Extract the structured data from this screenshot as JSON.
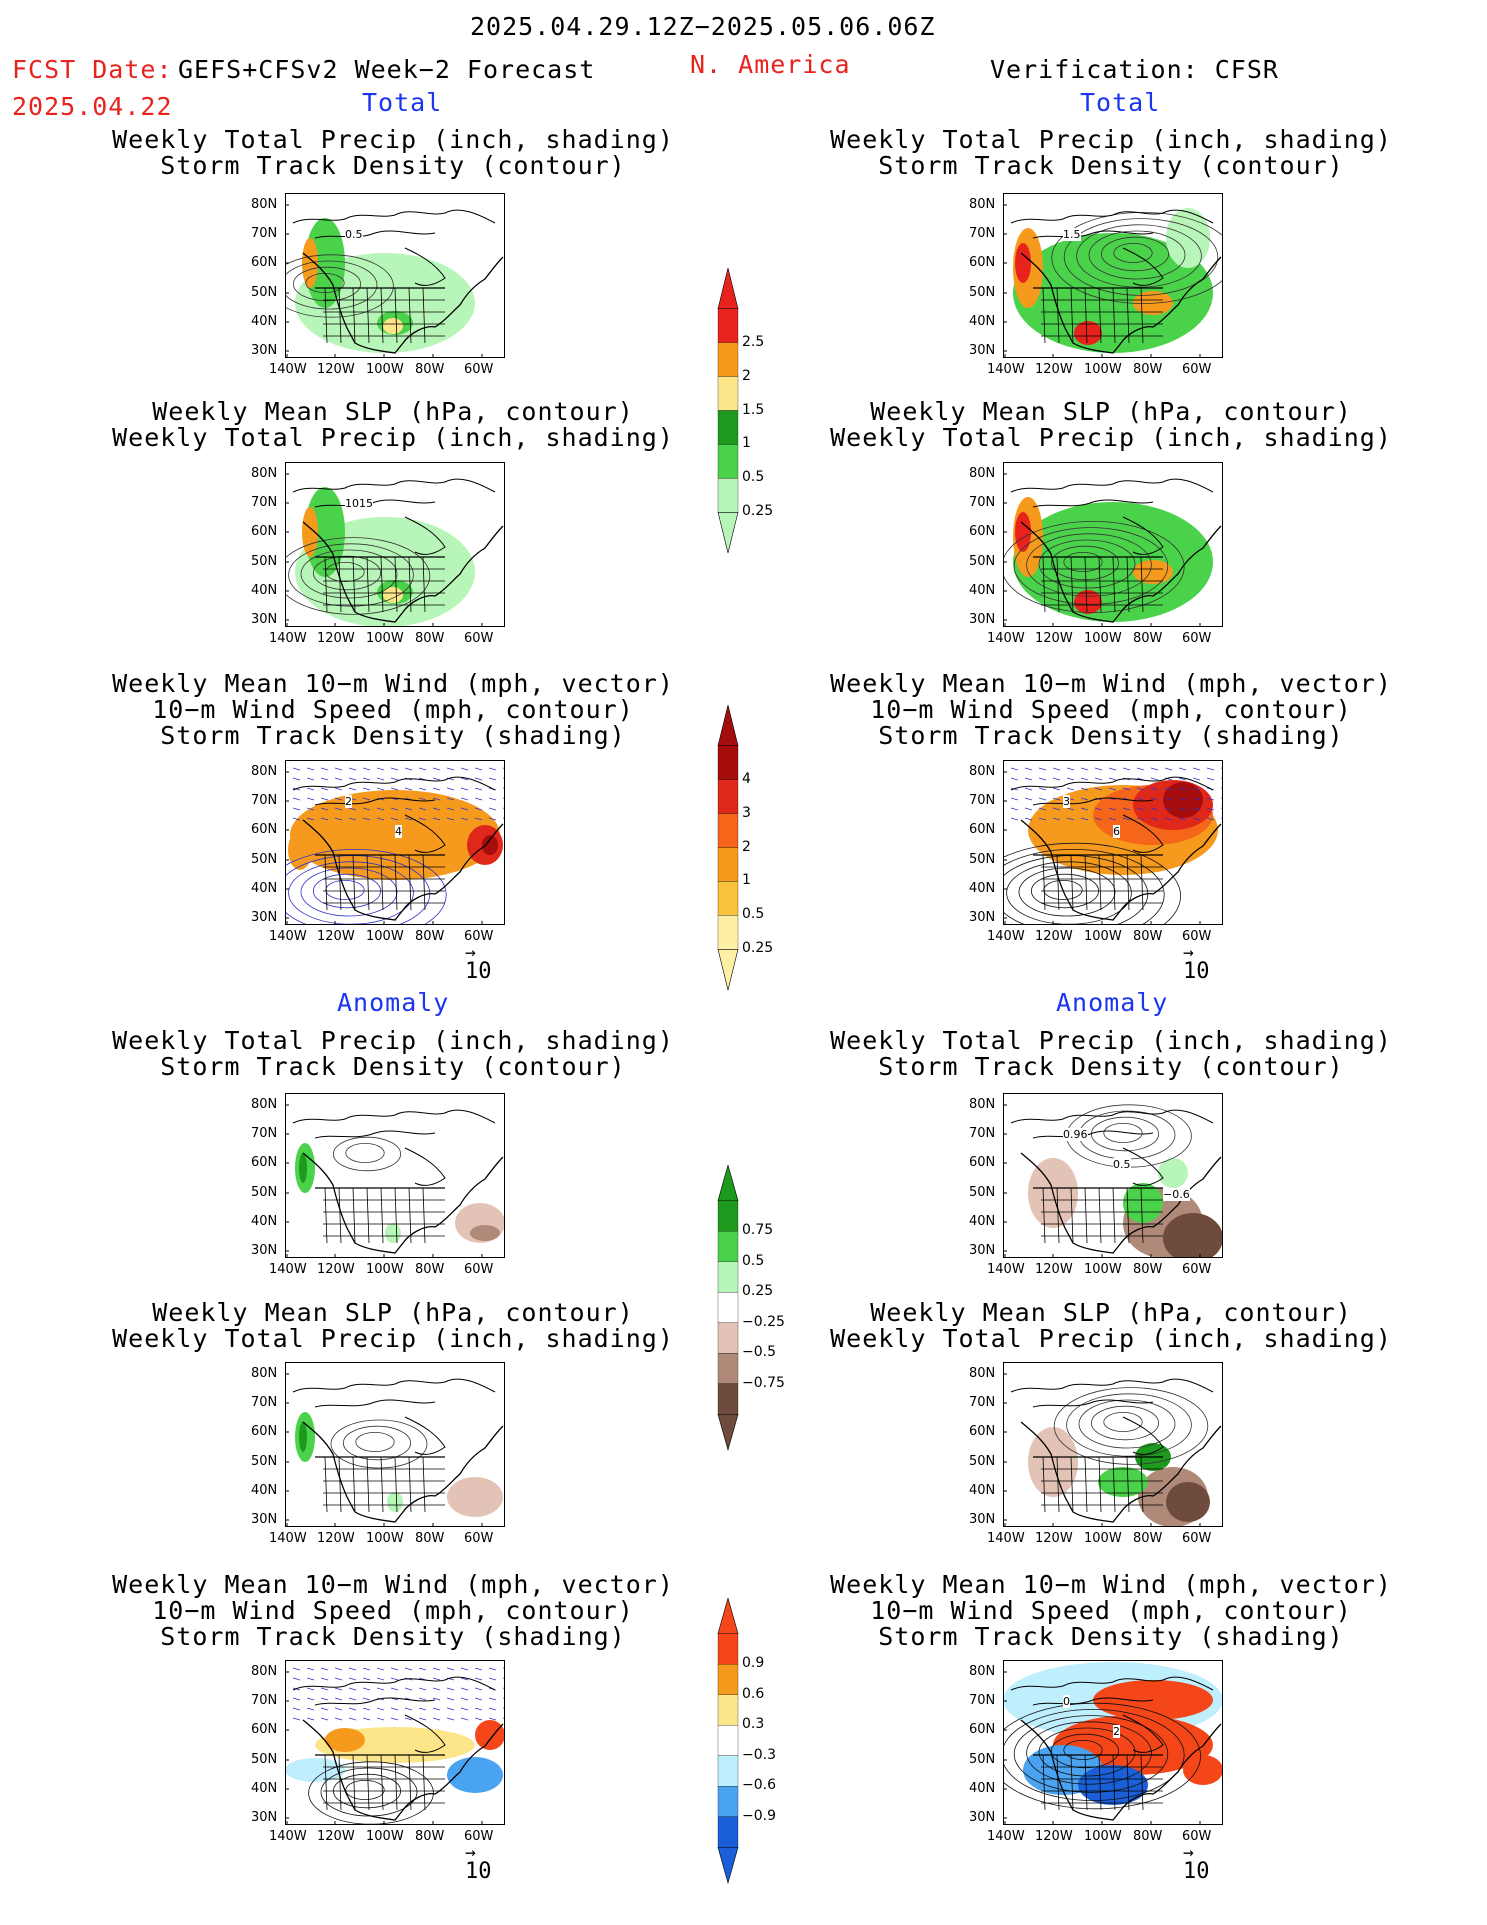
{
  "header": {
    "date_range": "2025.04.29.12Z−2025.05.06.06Z",
    "fcst_label": "FCST Date:",
    "fcst_date": "2025.04.22",
    "forecast_name": "GEFS+CFSv2 Week−2 Forecast",
    "region": "N. America",
    "verification": "Verification: CFSR"
  },
  "section_labels": {
    "total": "Total",
    "anomaly": "Anomaly"
  },
  "panel_titles": {
    "precip_storm": [
      "Weekly Total Precip (inch, shading)",
      "Storm Track Density (contour)"
    ],
    "slp_precip": [
      "Weekly Mean SLP (hPa, contour)",
      "Weekly Total Precip (inch, shading)"
    ],
    "wind_storm": [
      "Weekly Mean 10−m Wind (mph, vector)",
      "10−m Wind Speed (mph, contour)",
      "Storm Track Density (shading)"
    ]
  },
  "axes": {
    "lat_ticks": [
      "80N",
      "70N",
      "60N",
      "50N",
      "40N",
      "30N"
    ],
    "lon_ticks": [
      "140W",
      "120W",
      "100W",
      "80W",
      "60W"
    ]
  },
  "vector_reference": "10",
  "map_labels": {
    "f_prec_total": [
      "0.5"
    ],
    "v_prec_total": [
      "1.5"
    ],
    "f_slp_total": [
      "1015"
    ],
    "f_wind_total": [
      "2",
      "4"
    ],
    "v_wind_total": [
      "3",
      "6"
    ],
    "v_prec_anom": [
      "0.96",
      "0.5",
      "−0.6"
    ],
    "v_wind_anom": [
      "0",
      "2"
    ]
  },
  "colorbars": [
    {
      "name": "total-precip",
      "labels": [
        "2.5",
        "2",
        "1.5",
        "1",
        "0.5",
        "0.25"
      ],
      "colors": [
        "#e8231d",
        "#f59a1d",
        "#fde58a",
        "#1d9a1d",
        "#4bd24b",
        "#b8f5b8"
      ]
    },
    {
      "name": "total-storm-density",
      "labels": [
        "4",
        "3",
        "2",
        "1",
        "0.5",
        "0.25"
      ],
      "colors": [
        "#a50d0d",
        "#e0281a",
        "#f5661a",
        "#f59a1d",
        "#f9c23c",
        "#fdf0a5"
      ]
    },
    {
      "name": "anom-precip",
      "labels": [
        "0.75",
        "0.5",
        "0.25",
        "−0.25",
        "−0.5",
        "−0.75"
      ],
      "colors": [
        "#1d9a1d",
        "#4bd24b",
        "#b8f5b8",
        "#ffffff",
        "#e3c3b6",
        "#b08a78",
        "#6e4b3c"
      ]
    },
    {
      "name": "anom-storm-density",
      "labels": [
        "0.9",
        "0.6",
        "0.3",
        "−0.3",
        "−0.6",
        "−0.9"
      ],
      "colors": [
        "#f5461a",
        "#f59a1d",
        "#fde58a",
        "#ffffff",
        "#bfeefd",
        "#4aa3f0",
        "#1a5fd8"
      ]
    }
  ],
  "colors": {
    "accent_red": "#e8231d",
    "accent_blue": "#1b35f0",
    "land_line": "#000000",
    "vector_blue": "#3030c8"
  }
}
